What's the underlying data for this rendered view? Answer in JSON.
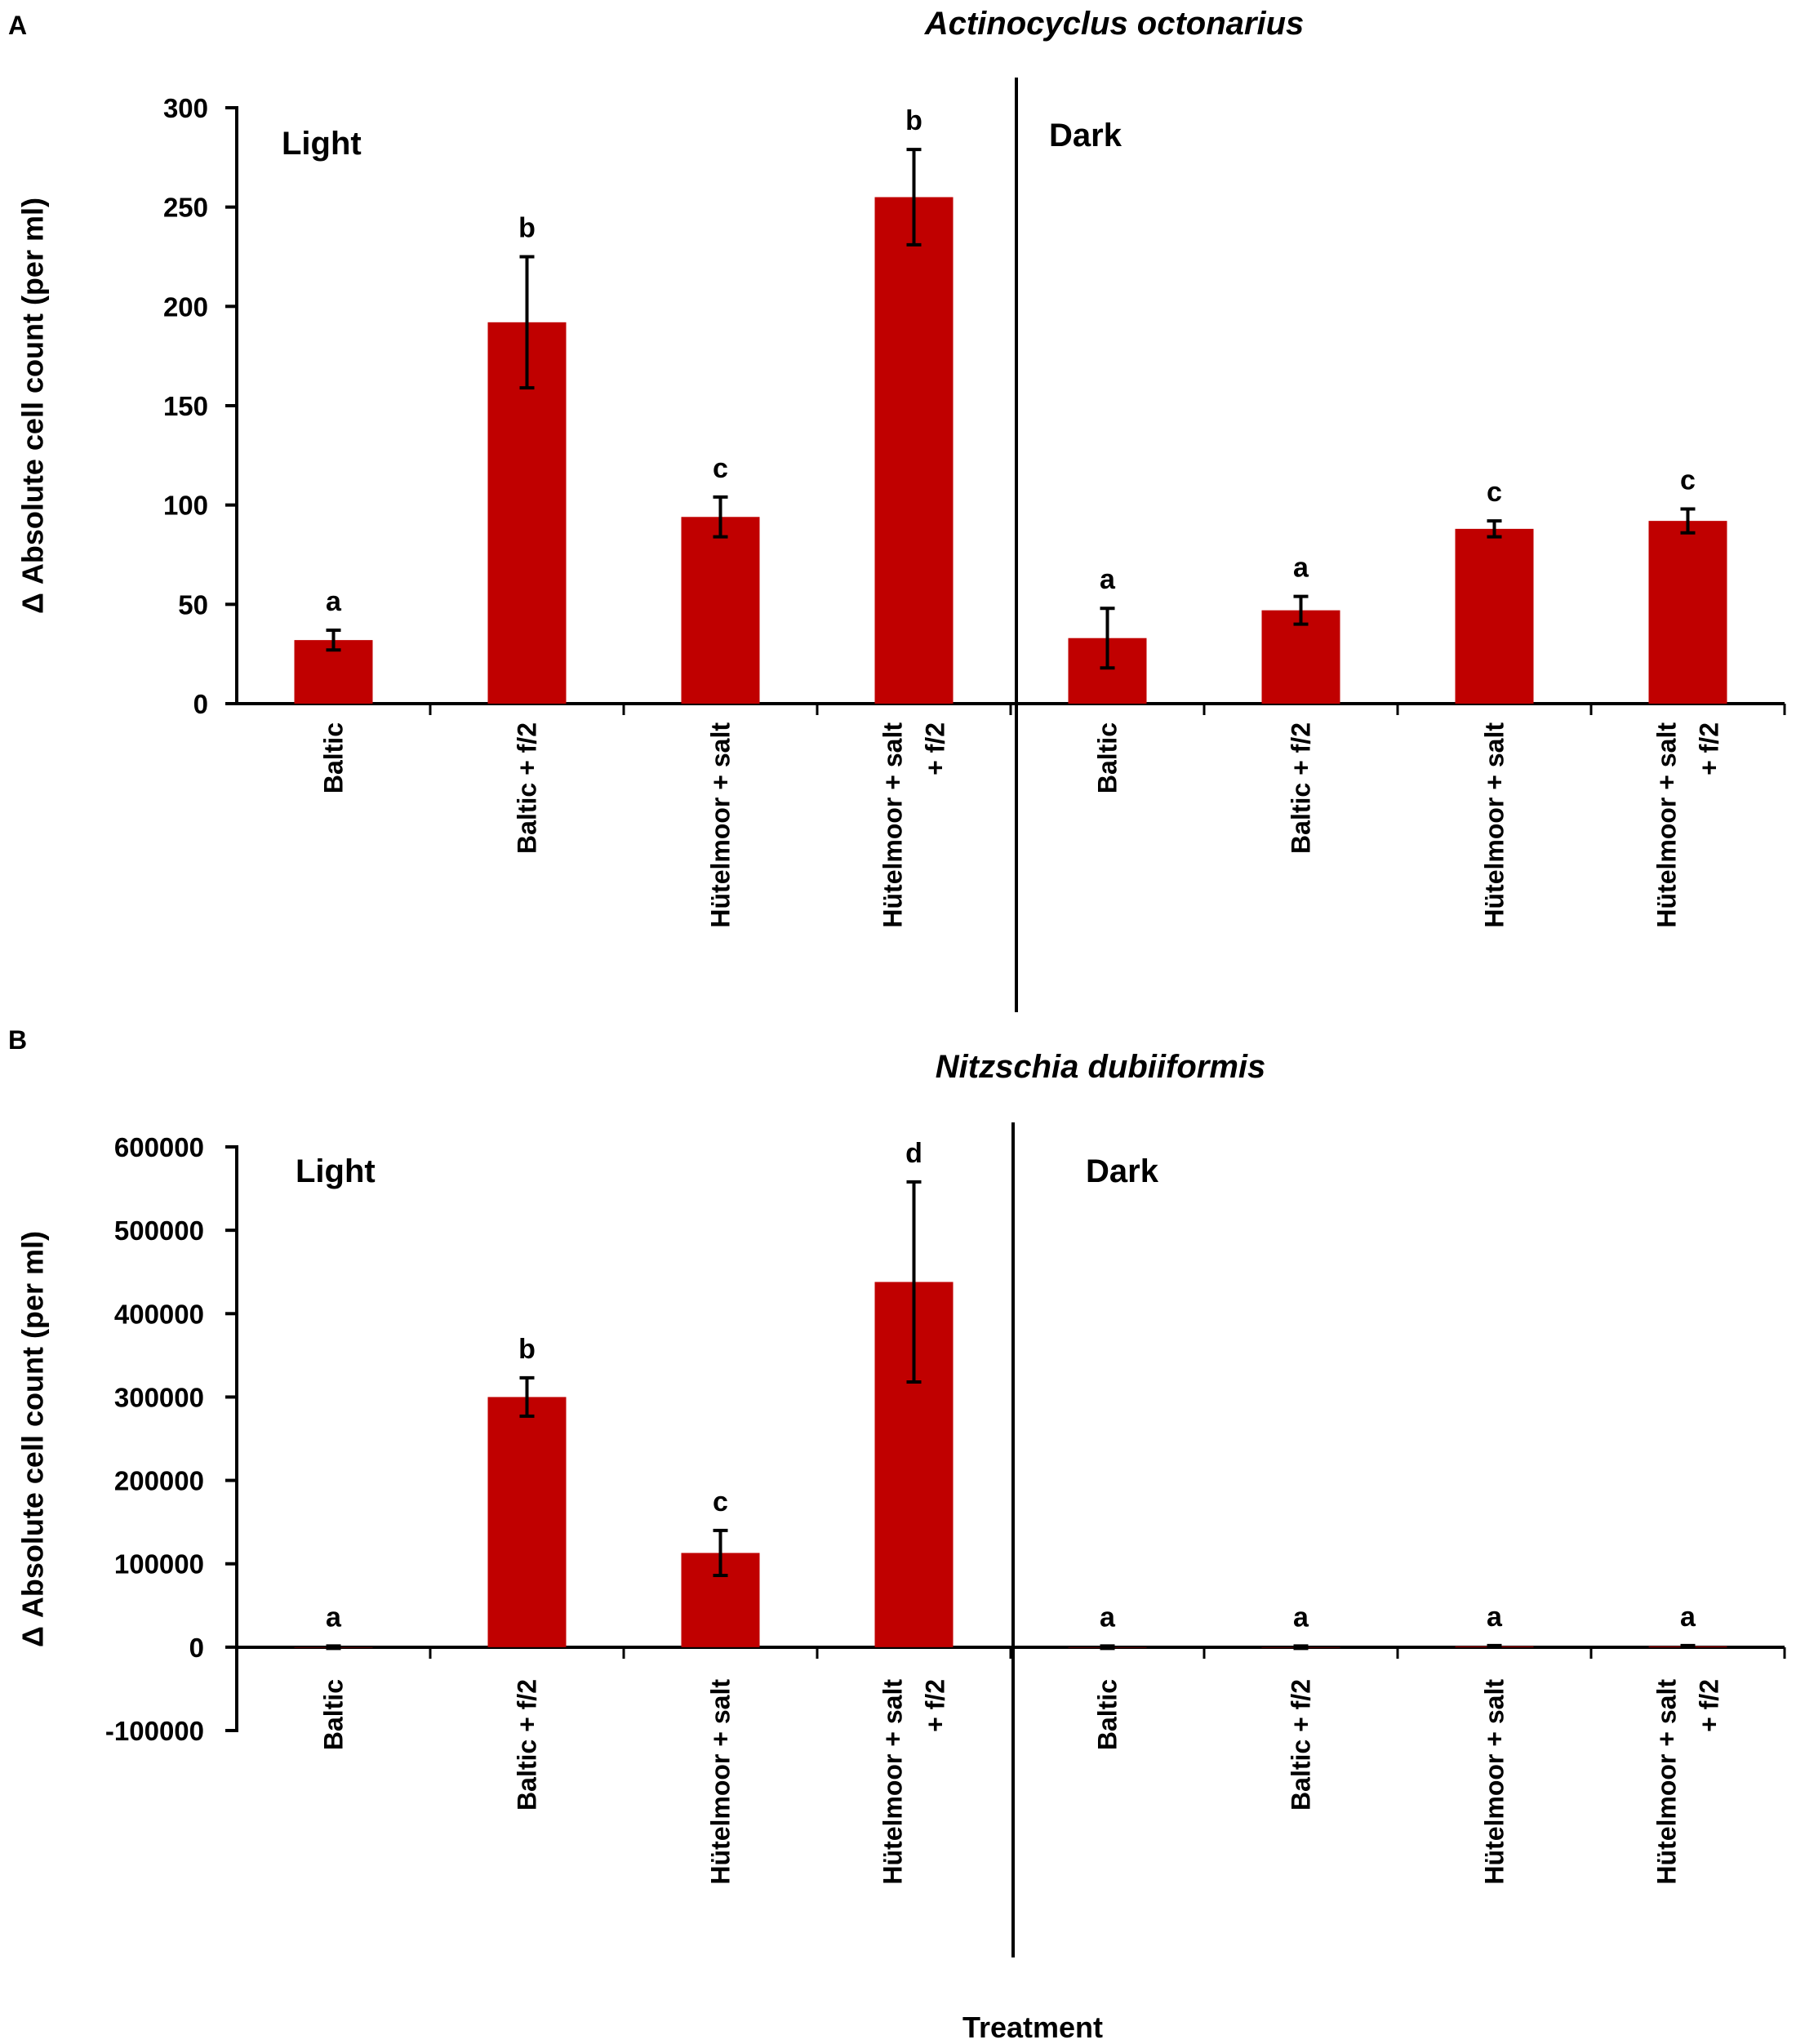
{
  "x_label": "Treatment",
  "chart_data": [
    {
      "type": "bar",
      "panel": "A",
      "title": "Actinocyclus octonarius",
      "ylabel": "Δ Absolute cell count (per ml)",
      "ylim": [
        0,
        300
      ],
      "yticks": [
        0,
        50,
        100,
        150,
        200,
        250,
        300
      ],
      "regions": [
        "Light",
        "Dark"
      ],
      "categories": [
        [
          "Baltic"
        ],
        [
          "Baltic + f/2"
        ],
        [
          "Hütelmoor + salt"
        ],
        [
          "Hütelmoor + salt",
          "+ f/2"
        ],
        [
          "Baltic"
        ],
        [
          "Baltic + f/2"
        ],
        [
          "Hütelmoor + salt"
        ],
        [
          "Hütelmoor + salt",
          "+ f/2"
        ]
      ],
      "values": [
        32,
        192,
        94,
        255,
        33,
        47,
        88,
        92
      ],
      "errors": [
        5,
        33,
        10,
        24,
        15,
        7,
        4,
        6
      ],
      "significance": [
        "a",
        "b",
        "c",
        "b",
        "a",
        "a",
        "c",
        "c"
      ],
      "bar_color": "#c00000"
    },
    {
      "type": "bar",
      "panel": "B",
      "title": "Nitzschia dubiiformis",
      "ylabel": "Δ Absolute cell count (per ml)",
      "ylim": [
        -100000,
        600000
      ],
      "yticks": [
        -100000,
        0,
        100000,
        200000,
        300000,
        400000,
        500000,
        600000
      ],
      "regions": [
        "Light",
        "Dark"
      ],
      "categories": [
        [
          "Baltic"
        ],
        [
          "Baltic + f/2"
        ],
        [
          "Hütelmoor + salt"
        ],
        [
          "Hütelmoor + salt",
          "+ f/2"
        ],
        [
          "Baltic"
        ],
        [
          "Baltic + f/2"
        ],
        [
          "Hütelmoor + salt"
        ],
        [
          "Hütelmoor + salt",
          "+ f/2"
        ]
      ],
      "values": [
        0,
        300000,
        113000,
        438000,
        0,
        0,
        1000,
        1000
      ],
      "errors": [
        1500,
        23000,
        27000,
        120000,
        1500,
        1500,
        1000,
        1000
      ],
      "significance": [
        "a",
        "b",
        "c",
        "d",
        "a",
        "a",
        "a",
        "a"
      ],
      "bar_color": "#c00000"
    }
  ]
}
